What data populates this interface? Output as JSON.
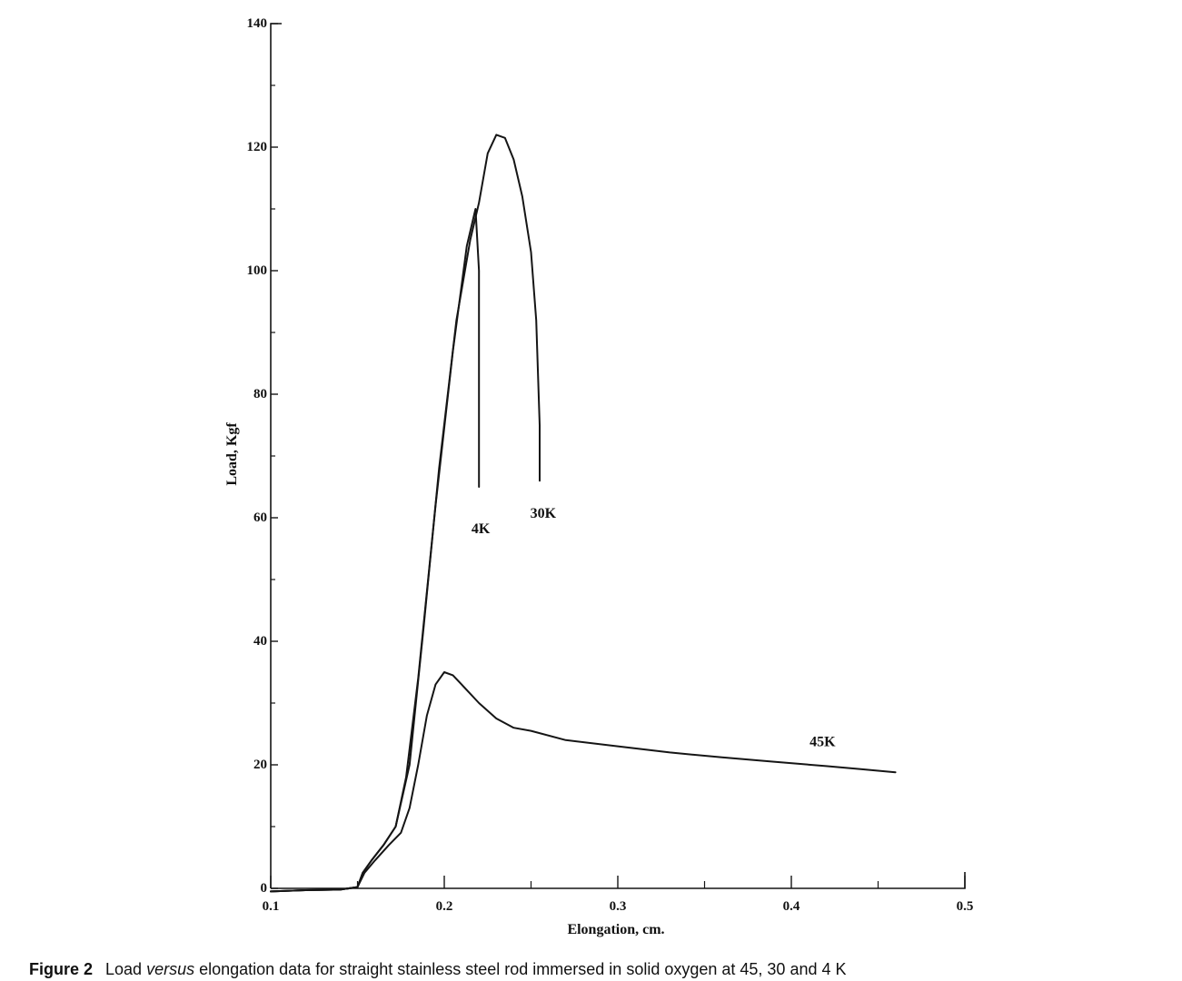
{
  "chart_data": {
    "type": "line",
    "xlabel": "Elongation, cm.",
    "ylabel": "Load, Kgf",
    "xlim": [
      0.1,
      0.5
    ],
    "ylim": [
      0,
      140
    ],
    "x_ticks": [
      0.1,
      0.2,
      0.3,
      0.4,
      0.5
    ],
    "x_tick_labels": [
      "0.1",
      "0.2",
      "0.3",
      "0.4",
      "0.5"
    ],
    "y_ticks": [
      0,
      20,
      40,
      60,
      80,
      100,
      120,
      140
    ],
    "y_tick_labels": [
      "0",
      "20",
      "40",
      "60",
      "80",
      "100",
      "120",
      "140"
    ],
    "grid": false,
    "series": [
      {
        "name": "4K",
        "x": [
          0.1,
          0.12,
          0.14,
          0.15,
          0.153,
          0.158,
          0.165,
          0.172,
          0.178,
          0.185,
          0.195,
          0.205,
          0.213,
          0.218,
          0.22,
          0.22
        ],
        "y": [
          -0.5,
          -0.3,
          -0.2,
          0.2,
          2.5,
          4.5,
          7,
          10,
          18,
          34,
          62,
          87,
          104,
          110,
          100,
          65
        ]
      },
      {
        "name": "30K",
        "x": [
          0.1,
          0.12,
          0.14,
          0.15,
          0.153,
          0.158,
          0.165,
          0.172,
          0.18,
          0.188,
          0.197,
          0.207,
          0.215,
          0.22,
          0.225,
          0.23,
          0.235,
          0.24,
          0.245,
          0.25,
          0.253,
          0.255,
          0.255
        ],
        "y": [
          -0.5,
          -0.3,
          -0.2,
          0.2,
          2.5,
          4.5,
          7,
          10,
          20,
          42,
          68,
          92,
          105,
          111,
          119,
          122,
          121.5,
          118,
          112,
          103,
          92,
          75,
          66
        ]
      },
      {
        "name": "45K",
        "x": [
          0.1,
          0.12,
          0.14,
          0.15,
          0.154,
          0.16,
          0.168,
          0.175,
          0.18,
          0.185,
          0.19,
          0.195,
          0.2,
          0.205,
          0.21,
          0.22,
          0.23,
          0.24,
          0.25,
          0.27,
          0.3,
          0.33,
          0.36,
          0.39,
          0.42,
          0.44,
          0.46
        ],
        "y": [
          -0.5,
          -0.3,
          -0.2,
          0.2,
          2.5,
          4.5,
          7,
          9,
          13,
          20,
          28,
          33,
          35,
          34.5,
          33,
          30,
          27.5,
          26,
          25.5,
          24,
          23,
          22,
          21.2,
          20.5,
          19.8,
          19.3,
          18.8
        ]
      }
    ],
    "series_labels": [
      {
        "text": "4K",
        "x": 0.221,
        "y": 57.5
      },
      {
        "text": "30K",
        "x": 0.257,
        "y": 60
      },
      {
        "text": "45K",
        "x": 0.418,
        "y": 23
      }
    ]
  },
  "caption": {
    "figure_number": "Figure 2",
    "text_before": "Load ",
    "emphasis": "versus",
    "text_after": " elongation data for straight stainless steel rod immersed in solid oxygen at 45, 30 and 4 K"
  }
}
